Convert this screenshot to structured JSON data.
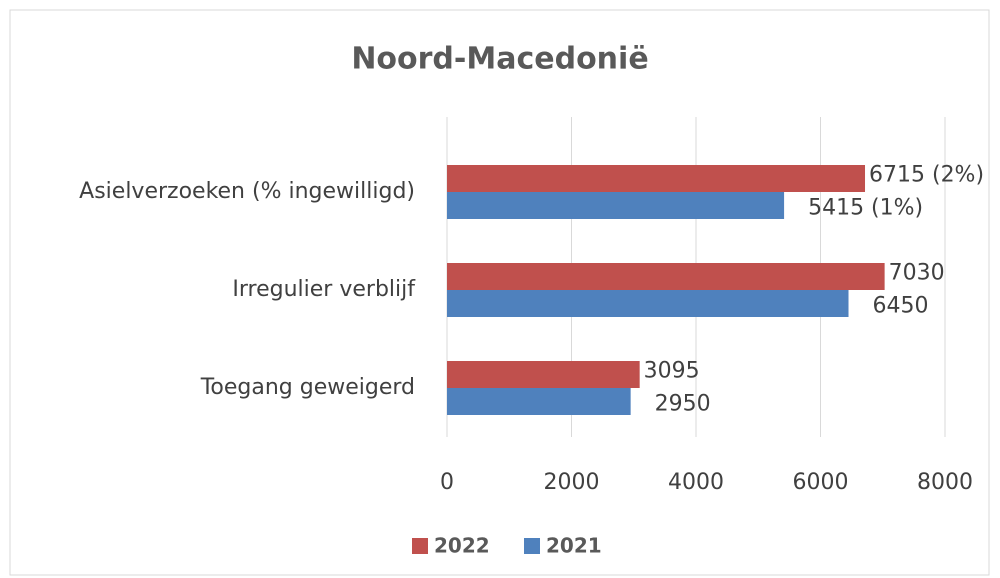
{
  "chart_data": {
    "type": "barh",
    "title": "Noord-Macedonië",
    "categories": [
      "Asielverzoeken (% ingewilligd)",
      "Irregulier verblijf",
      "Toegang geweigerd"
    ],
    "series": [
      {
        "name": "2022",
        "color": "#c0504d",
        "values": [
          6715,
          7030,
          3095
        ],
        "value_labels": [
          "6715 (2%)",
          "7030",
          "3095"
        ]
      },
      {
        "name": "2021",
        "color": "#4f81bd",
        "values": [
          5415,
          6450,
          2950
        ],
        "value_labels": [
          "5415 (1%)",
          "6450",
          "2950"
        ]
      }
    ],
    "xlim": [
      0,
      8000
    ],
    "xticks": [
      0,
      2000,
      4000,
      6000,
      8000
    ],
    "grid": true,
    "legend": "bottom"
  }
}
